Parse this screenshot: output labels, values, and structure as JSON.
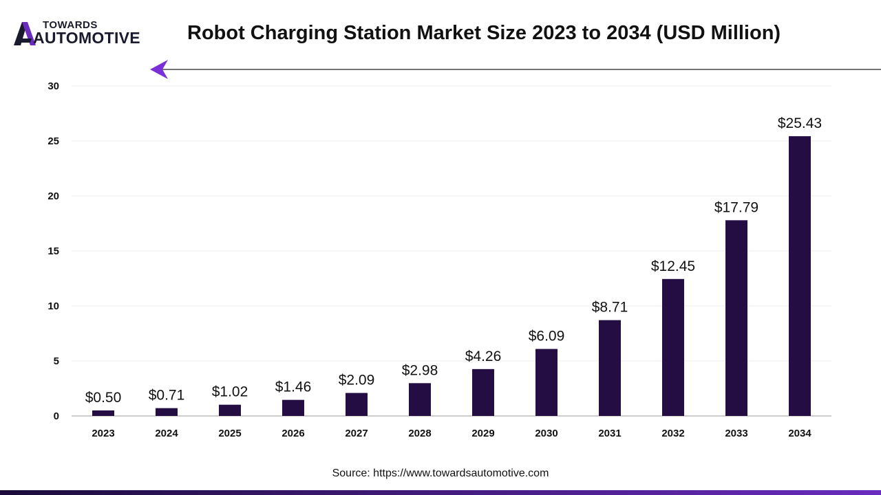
{
  "logo": {
    "top_text": "TOWARDS",
    "bottom_text": "AUTOMOTIVE"
  },
  "title": "Robot Charging Station Market Size 2023 to 2034 (USD Million)",
  "source": "Source: https://www.towardsautomotive.com",
  "colors": {
    "bar": "#240d43",
    "accent": "#7b2fd6",
    "footer_gradient": [
      "#1b0c3a",
      "#6a2bbf"
    ]
  },
  "chart_data": {
    "type": "bar",
    "categories": [
      "2023",
      "2024",
      "2025",
      "2026",
      "2027",
      "2028",
      "2029",
      "2030",
      "2031",
      "2032",
      "2033",
      "2034"
    ],
    "values": [
      0.5,
      0.71,
      1.02,
      1.46,
      2.09,
      2.98,
      4.26,
      6.09,
      8.71,
      12.45,
      17.79,
      25.43
    ],
    "data_labels": [
      "$0.50",
      "$0.71",
      "$1.02",
      "$1.46",
      "$2.09",
      "$2.98",
      "$4.26",
      "$6.09",
      "$8.71",
      "$12.45",
      "$17.79",
      "$25.43"
    ],
    "yticks": [
      0,
      5,
      10,
      15,
      20,
      25,
      30
    ],
    "ylim": [
      0,
      30
    ],
    "grid": true,
    "legend": "none"
  }
}
